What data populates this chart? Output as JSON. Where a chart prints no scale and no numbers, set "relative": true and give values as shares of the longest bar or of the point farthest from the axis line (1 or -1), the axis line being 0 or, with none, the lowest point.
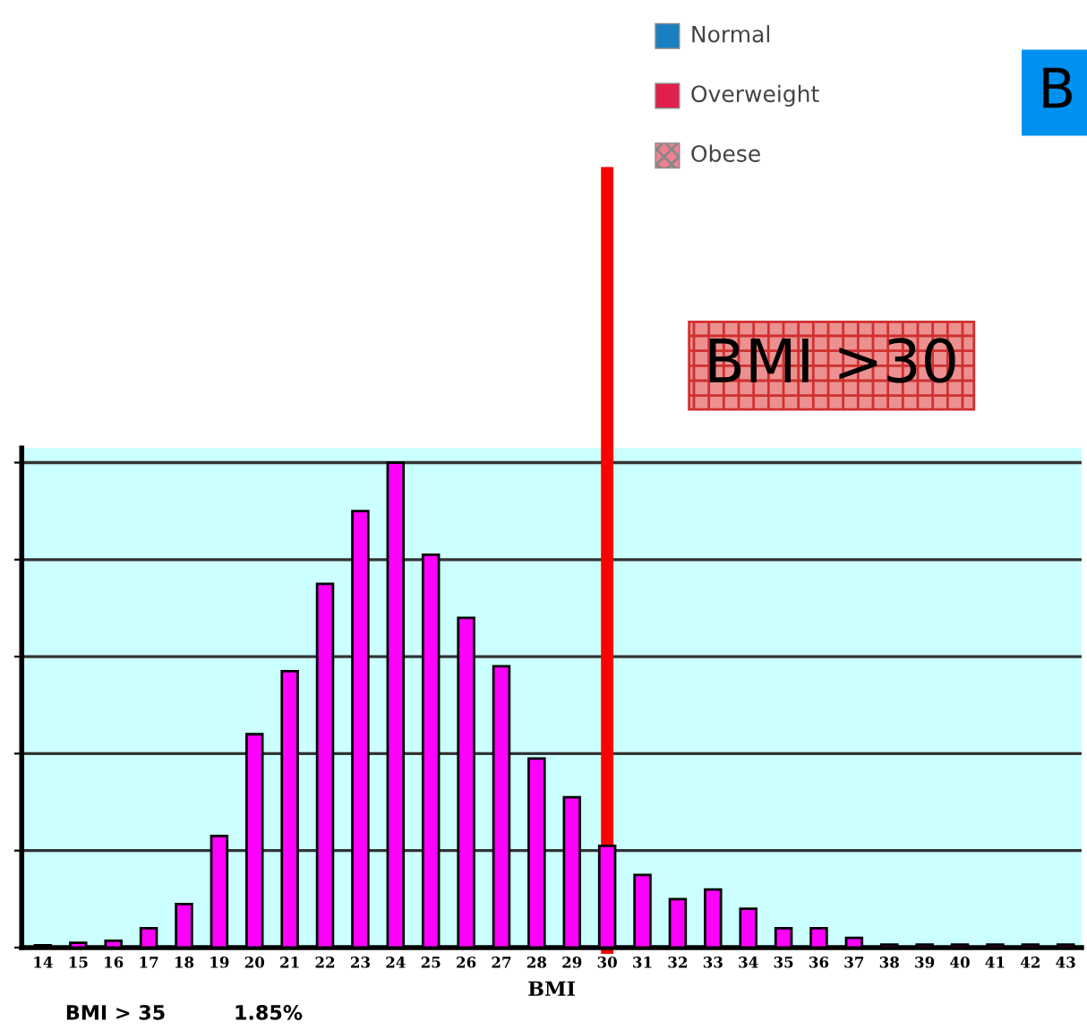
{
  "chart_data": {
    "type": "bar",
    "relative": true,
    "xlabel": "BMI",
    "categories": [
      "14",
      "15",
      "16",
      "17",
      "18",
      "19",
      "20",
      "21",
      "22",
      "23",
      "24",
      "25",
      "26",
      "27",
      "28",
      "29",
      "30",
      "31",
      "32",
      "33",
      "34",
      "35",
      "36",
      "37",
      "38",
      "39",
      "40",
      "41",
      "42",
      "43"
    ],
    "values": [
      0.005,
      0.01,
      0.014,
      0.04,
      0.09,
      0.23,
      0.44,
      0.57,
      0.75,
      0.9,
      1,
      0.81,
      0.68,
      0.58,
      0.39,
      0.31,
      0.21,
      0.15,
      0.1,
      0.12,
      0.08,
      0.04,
      0.04,
      0.02,
      0.006,
      0.006,
      0.006,
      0.006,
      0.006,
      0.006
    ],
    "color": "#ff00ff",
    "grid": "y",
    "ref_lines": [
      {
        "axis": "x",
        "value": "30",
        "color": "#ff0000"
      }
    ],
    "annotations": [
      "Normal",
      "Overweight",
      "Obese",
      "B",
      "BMI >30",
      "BMI > 35",
      "1.85%"
    ]
  }
}
